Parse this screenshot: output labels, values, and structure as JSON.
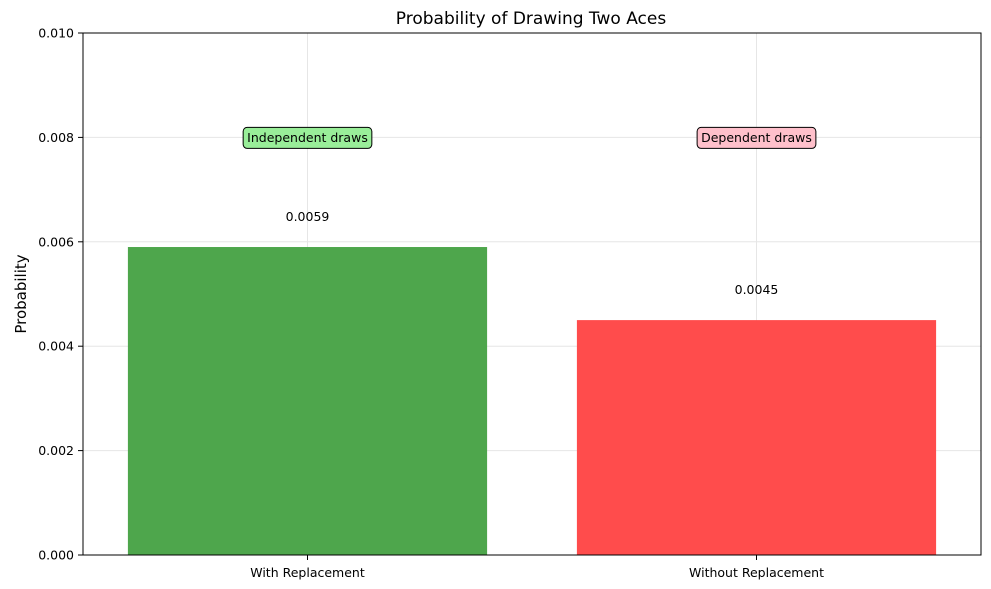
{
  "chart_data": {
    "type": "bar",
    "title": "Probability of Drawing Two Aces",
    "xlabel": "",
    "ylabel": "Probability",
    "categories": [
      "With Replacement",
      "Without Replacement"
    ],
    "values": [
      0.0059,
      0.0045
    ],
    "value_labels": [
      "0.0059",
      "0.0045"
    ],
    "bar_colors": [
      "#4ea64c",
      "#ff4c4c"
    ],
    "annotations": [
      {
        "text": "Independent draws",
        "category": "With Replacement",
        "y": 0.008,
        "box_color": "#99ee99"
      },
      {
        "text": "Dependent draws",
        "category": "Without Replacement",
        "y": 0.008,
        "box_color": "#ffc0cb"
      }
    ],
    "ylim": [
      0,
      0.01
    ],
    "yticks": [
      0,
      0.002,
      0.004,
      0.006,
      0.008,
      0.01
    ],
    "ytick_labels": [
      "0.000",
      "0.002",
      "0.004",
      "0.006",
      "0.008",
      "0.010"
    ],
    "grid": true,
    "legend": "none"
  }
}
